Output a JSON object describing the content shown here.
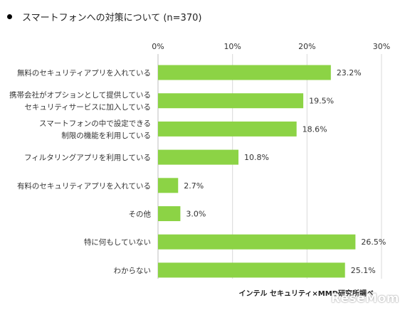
{
  "header": {
    "title": "スマートフォンへの対策について (n=370)"
  },
  "source_text": "インテル セキュリティ×MMD研究所調べ",
  "watermark_text": "ReseMom",
  "colors": {
    "bar": "#8cd345",
    "grid": "#d9d9d9",
    "text": "#333333"
  },
  "chart_data": {
    "type": "bar",
    "orientation": "horizontal",
    "categories": [
      [
        "無料のセキュリティアプリを入れている"
      ],
      [
        "携帯会社がオプションとして提供している",
        "セキュリティサービスに加入している"
      ],
      [
        "スマートフォンの中で設定できる",
        "制限の機能を利用している"
      ],
      [
        "フィルタリングアプリを利用している"
      ],
      [
        "有料のセキュリティアプリを入れている"
      ],
      [
        "その他"
      ],
      [
        "特に何もしていない"
      ],
      [
        "わからない"
      ]
    ],
    "values": [
      23.2,
      19.5,
      18.6,
      10.8,
      2.7,
      3.0,
      26.5,
      25.1
    ],
    "value_labels": [
      "23.2%",
      "19.5%",
      "18.6%",
      "10.8%",
      "2.7%",
      "3.0%",
      "26.5%",
      "25.1%"
    ],
    "xlim": [
      0,
      30
    ],
    "x_ticks": [
      0,
      10,
      20,
      30
    ],
    "x_tick_labels": [
      "0%",
      "10%",
      "20%",
      "30%"
    ],
    "x_axis_position": "top",
    "grid": true
  }
}
